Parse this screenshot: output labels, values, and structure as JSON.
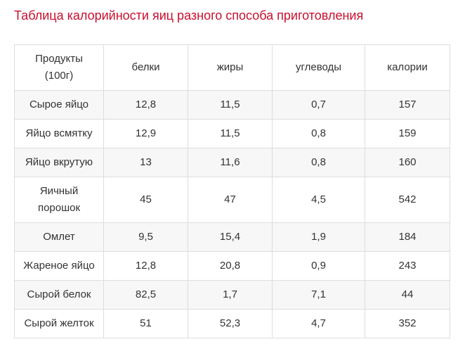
{
  "title": "Таблица калорийности яиц разного способа приготовления",
  "table": {
    "headers": [
      "Продукты (100г)",
      "белки",
      "жиры",
      "углеводы",
      "калории"
    ],
    "rows": [
      [
        "Сырое яйцо",
        "12,8",
        "11,5",
        "0,7",
        "157"
      ],
      [
        "Яйцо всмятку",
        "12,9",
        "11,5",
        "0,8",
        "159"
      ],
      [
        "Яйцо вкрутую",
        "13",
        "11,6",
        "0,8",
        "160"
      ],
      [
        "Яичный порошок",
        "45",
        "47",
        "4,5",
        "542"
      ],
      [
        "Омлет",
        "9,5",
        "15,4",
        "1,9",
        "184"
      ],
      [
        "Жареное яйцо",
        "12,8",
        "20,8",
        "0,9",
        "243"
      ],
      [
        "Сырой белок",
        "82,5",
        "1,7",
        "7,1",
        "44"
      ],
      [
        "Сырой желток",
        "51",
        "52,3",
        "4,7",
        "352"
      ]
    ]
  }
}
